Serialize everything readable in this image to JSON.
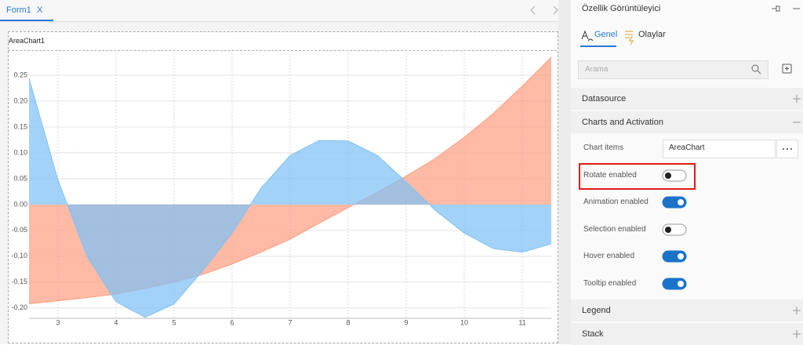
{
  "tab": {
    "label": "Form1",
    "close": "X"
  },
  "designer": {
    "component_label": "AreaChart1"
  },
  "chart_data": {
    "type": "area",
    "x": [
      2.5,
      3,
      3.5,
      4,
      4.5,
      5,
      5.5,
      6,
      6.5,
      7,
      7.5,
      8,
      8.5,
      9,
      9.5,
      10,
      10.5,
      11,
      11.5
    ],
    "series": [
      {
        "color": "#fd9f82",
        "values": [
          -0.192,
          -0.186,
          -0.18,
          -0.173,
          -0.162,
          -0.15,
          -0.135,
          -0.115,
          -0.092,
          -0.067,
          -0.036,
          -0.006,
          0.024,
          0.055,
          0.089,
          0.13,
          0.176,
          0.229,
          0.285
        ]
      },
      {
        "color": "#7fc0f5",
        "values": [
          0.244,
          0.047,
          -0.1,
          -0.188,
          -0.218,
          -0.192,
          -0.127,
          -0.055,
          0.032,
          0.095,
          0.124,
          0.123,
          0.095,
          0.044,
          -0.011,
          -0.055,
          -0.085,
          -0.092,
          -0.076
        ]
      }
    ],
    "xlim": [
      2.5,
      11.5
    ],
    "ylim": [
      -0.22,
      0.3
    ],
    "xticks": [
      3,
      4,
      5,
      6,
      7,
      8,
      9,
      10,
      11
    ],
    "yticks": [
      {
        "value": -0.2,
        "label": "-0.20"
      },
      -0.15,
      {
        "value": -0.1,
        "label": "-0.10"
      },
      -0.05,
      {
        "value": 0,
        "label": "0.00"
      },
      0.05,
      {
        "value": 0.1,
        "label": "0.10"
      },
      0.15,
      {
        "value": 0.2,
        "label": "0.20"
      },
      0.25
    ],
    "grid": true
  },
  "panel": {
    "title": "Özellik Görüntüleyici",
    "tabs": [
      "Genel",
      "Olaylar"
    ],
    "search_placeholder": "Arama",
    "sections": [
      {
        "title": "Datasource",
        "expanded": false
      },
      {
        "title": "Charts and Activation",
        "expanded": true,
        "properties": [
          {
            "label": "Chart items",
            "value": "AreaChart"
          },
          {
            "label": "Rotate enabled",
            "on": false,
            "highlighted": true
          },
          {
            "label": "Animation enabled",
            "on": true
          },
          {
            "label": "Selection enabled",
            "on": false
          },
          {
            "label": "Hover enabled",
            "on": true
          },
          {
            "label": "Tooltip enabled",
            "on": true
          }
        ]
      },
      {
        "title": "Legend",
        "expanded": false
      },
      {
        "title": "Stack",
        "expanded": false
      }
    ]
  }
}
